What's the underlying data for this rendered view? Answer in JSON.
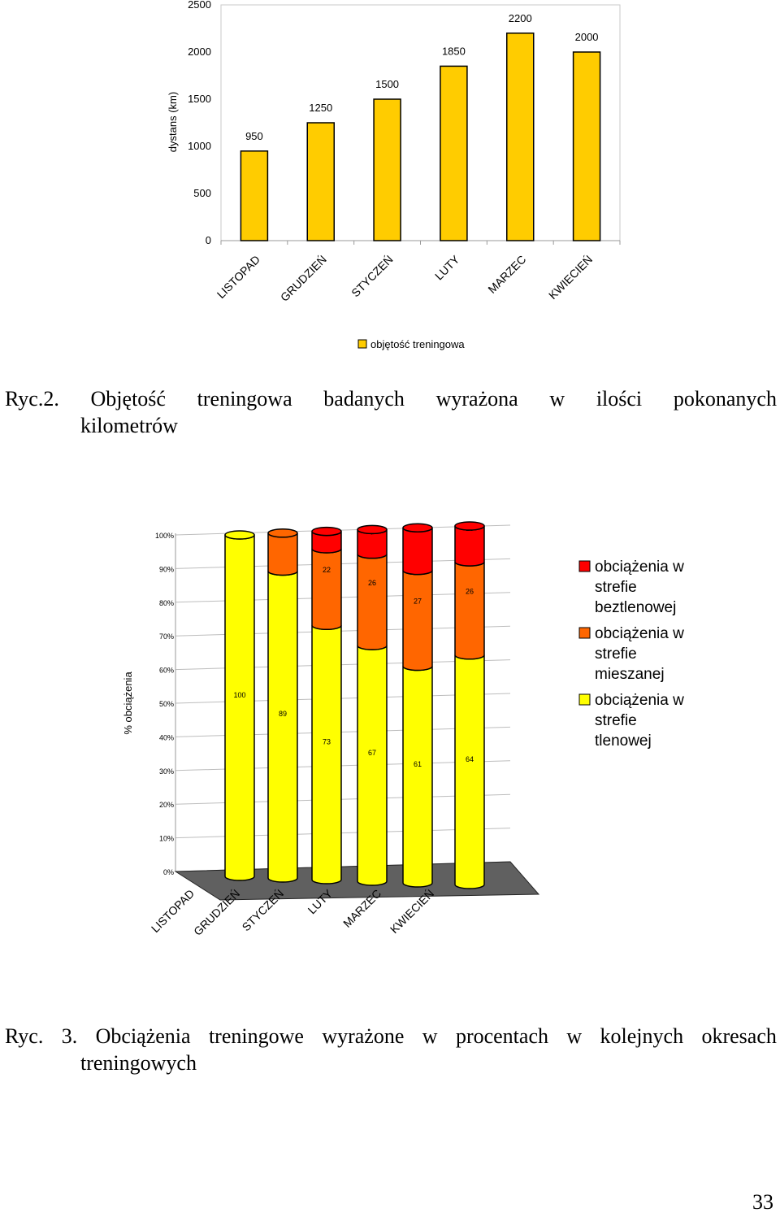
{
  "chart_data": [
    {
      "type": "bar",
      "categories": [
        "LISTOPAD",
        "GRUDZIEŃ",
        "STYCZEŃ",
        "LUTY",
        "MARZEC",
        "KWIECIEŃ"
      ],
      "series": [
        {
          "name": "objętość treningowa",
          "values": [
            950,
            1250,
            1500,
            1850,
            2200,
            2000
          ]
        }
      ],
      "ylabel": "dystans (km)",
      "xlabel": "",
      "ylim": [
        0,
        2500
      ],
      "yticks": [
        0,
        500,
        1000,
        1500,
        2000,
        2500
      ],
      "data_labels": true,
      "grid": false,
      "legend": "bottom",
      "color": "#FFCC00"
    },
    {
      "type": "bar",
      "stacked": true,
      "percent": true,
      "categories": [
        "LISTOPAD",
        "GRUDZIEŃ",
        "STYCZEŃ",
        "LUTY",
        "MARZEC",
        "KWIECIEŃ"
      ],
      "series": [
        {
          "name": "obciążenia w strefie tlenowej",
          "values": [
            100,
            89,
            73,
            67,
            61,
            64
          ],
          "color": "#FFFF00"
        },
        {
          "name": "obciążenia w strefie mieszanej",
          "values": [
            0,
            11,
            22,
            26,
            27,
            26
          ],
          "color": "#FF6600"
        },
        {
          "name": "obciążenia w strefie beztlenowej",
          "values": [
            0,
            0,
            5,
            7,
            12,
            10
          ],
          "color": "#FF0000"
        }
      ],
      "ylabel": "% obciążenia",
      "xlabel": "",
      "ylim": [
        0,
        100
      ],
      "yticks": [
        "0%",
        "10%",
        "20%",
        "30%",
        "40%",
        "50%",
        "60%",
        "70%",
        "80%",
        "90%",
        "100%"
      ],
      "data_labels": true,
      "grid": true,
      "legend": "right"
    }
  ],
  "captions": {
    "fig2": {
      "line1": [
        "Ryc.2.",
        "Objętość",
        "treningowa",
        "badanych",
        "wyrażona",
        "w",
        "ilości",
        "pokonanych"
      ],
      "line2": "kilometrów"
    },
    "fig3": {
      "line1": [
        "Ryc.",
        "3.",
        "Obciążenia",
        "treningowe",
        "wyrażone",
        "w",
        "procentach",
        "w",
        "kolejnych",
        "okresach"
      ],
      "line2": "treningowych"
    }
  },
  "page_number": "33"
}
